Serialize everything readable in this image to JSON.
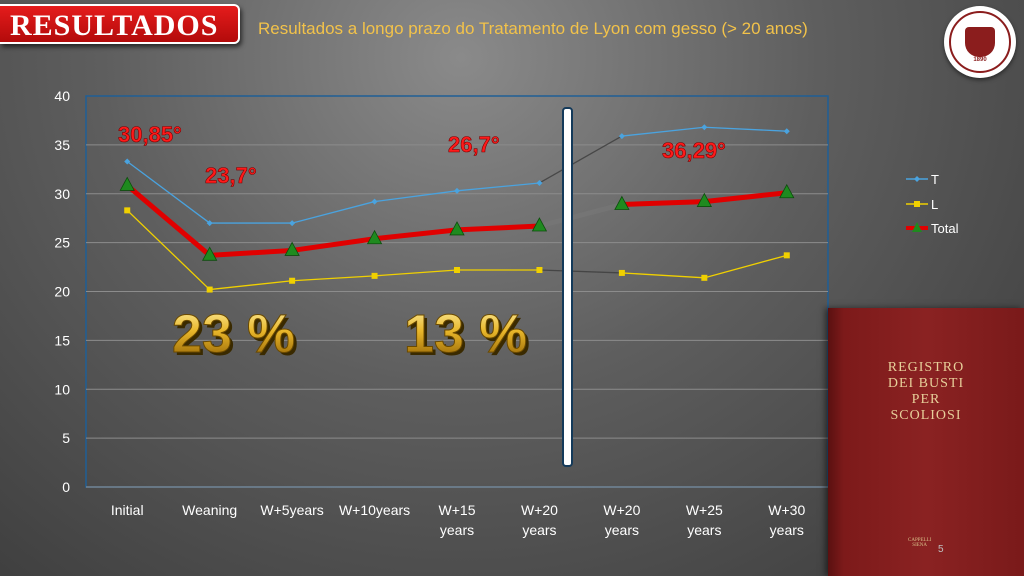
{
  "header": {
    "badge": "RESULTADOS",
    "title": "Resultados a longo prazo do Tratamento de Lyon com gesso (> 20 anos)"
  },
  "seal": {
    "year": "1890"
  },
  "book": {
    "lines": [
      "REGISTRO",
      "DEI BUSTI",
      "PER",
      "SCOLIOSI"
    ],
    "publisher1": "CAPPELLI",
    "publisher2": "SIENA"
  },
  "page_number": "5",
  "chart_data": {
    "type": "line",
    "categories": [
      [
        "Initial"
      ],
      [
        "Weaning"
      ],
      [
        "W+5years"
      ],
      [
        "W+10years"
      ],
      [
        "W+15",
        "years"
      ],
      [
        "W+20",
        "years"
      ],
      [
        "W+20",
        "years"
      ],
      [
        "W+25",
        "years"
      ],
      [
        "W+30",
        "years"
      ]
    ],
    "ylim": [
      0,
      40
    ],
    "yticks": [
      0,
      5,
      10,
      15,
      20,
      25,
      30,
      35,
      40
    ],
    "series": [
      {
        "name": "T",
        "color": "#4aa3df",
        "marker": "diamond",
        "values": [
          33.3,
          27.0,
          27.0,
          29.2,
          30.3,
          31.1,
          35.9,
          36.8,
          36.4
        ]
      },
      {
        "name": "L",
        "color": "#f0d000",
        "marker": "square",
        "values": [
          28.3,
          20.2,
          21.1,
          21.6,
          22.2,
          22.2,
          21.9,
          21.4,
          23.7
        ]
      },
      {
        "name": "Total",
        "color": "#e00000",
        "marker": "triangle",
        "values": [
          30.85,
          23.7,
          24.2,
          25.4,
          26.3,
          26.7,
          28.9,
          29.2,
          30.1
        ]
      }
    ],
    "annotations": [
      "30,85°",
      "23,7°",
      "26,7°",
      "36,29°"
    ],
    "percentages": [
      "23 %",
      "13 %"
    ],
    "grid": true,
    "legend": "right"
  }
}
